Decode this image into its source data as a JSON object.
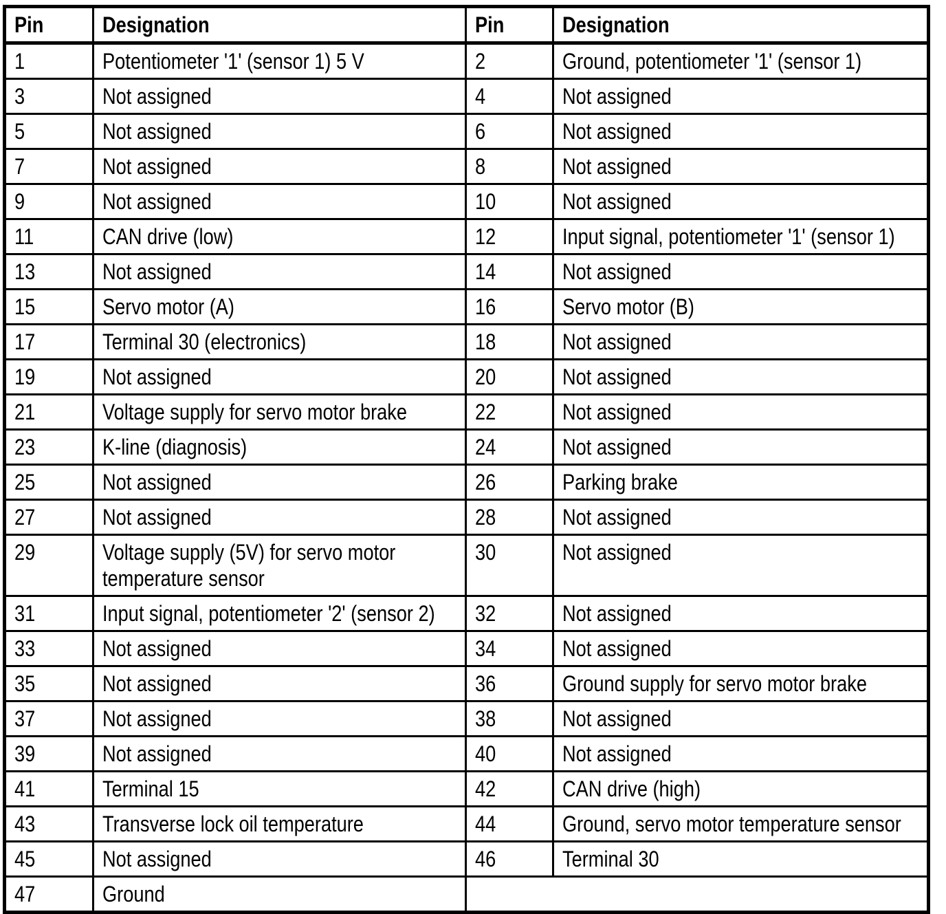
{
  "table": {
    "columns": [
      "Pin",
      "Designation",
      "Pin",
      "Designation"
    ],
    "colors": {
      "border": "#000000",
      "background": "#ffffff",
      "text": "#000000"
    },
    "rows": [
      {
        "pin_left": "1",
        "designation_left": "Potentiometer '1' (sensor 1) 5 V",
        "pin_right": "2",
        "designation_right": "Ground, potentiometer '1' (sensor 1)"
      },
      {
        "pin_left": "3",
        "designation_left": "Not assigned",
        "pin_right": "4",
        "designation_right": "Not assigned"
      },
      {
        "pin_left": "5",
        "designation_left": "Not assigned",
        "pin_right": "6",
        "designation_right": "Not assigned"
      },
      {
        "pin_left": "7",
        "designation_left": "Not assigned",
        "pin_right": "8",
        "designation_right": "Not assigned"
      },
      {
        "pin_left": "9",
        "designation_left": "Not assigned",
        "pin_right": "10",
        "designation_right": "Not assigned"
      },
      {
        "pin_left": "11",
        "designation_left": "CAN drive (low)",
        "pin_right": "12",
        "designation_right": "Input signal, potentiometer '1' (sensor 1)"
      },
      {
        "pin_left": "13",
        "designation_left": "Not assigned",
        "pin_right": "14",
        "designation_right": "Not assigned"
      },
      {
        "pin_left": "15",
        "designation_left": "Servo motor (A)",
        "pin_right": "16",
        "designation_right": "Servo motor (B)"
      },
      {
        "pin_left": "17",
        "designation_left": "Terminal 30 (electronics)",
        "pin_right": "18",
        "designation_right": "Not assigned"
      },
      {
        "pin_left": "19",
        "designation_left": "Not assigned",
        "pin_right": "20",
        "designation_right": "Not assigned"
      },
      {
        "pin_left": "21",
        "designation_left": "Voltage supply for servo motor brake",
        "pin_right": "22",
        "designation_right": "Not assigned"
      },
      {
        "pin_left": "23",
        "designation_left": "K-line (diagnosis)",
        "pin_right": "24",
        "designation_right": "Not assigned"
      },
      {
        "pin_left": "25",
        "designation_left": "Not assigned",
        "pin_right": "26",
        "designation_right": "Parking brake"
      },
      {
        "pin_left": "27",
        "designation_left": "Not assigned",
        "pin_right": "28",
        "designation_right": "Not assigned"
      },
      {
        "pin_left": "29",
        "designation_left": "Voltage supply (5V) for servo motor temperature sensor",
        "pin_right": "30",
        "designation_right": "Not assigned"
      },
      {
        "pin_left": "31",
        "designation_left": "Input signal, potentiometer '2' (sensor 2)",
        "pin_right": "32",
        "designation_right": "Not assigned"
      },
      {
        "pin_left": "33",
        "designation_left": "Not assigned",
        "pin_right": "34",
        "designation_right": "Not assigned"
      },
      {
        "pin_left": "35",
        "designation_left": "Not assigned",
        "pin_right": "36",
        "designation_right": "Ground supply for servo motor brake"
      },
      {
        "pin_left": "37",
        "designation_left": "Not assigned",
        "pin_right": "38",
        "designation_right": "Not assigned"
      },
      {
        "pin_left": "39",
        "designation_left": "Not assigned",
        "pin_right": "40",
        "designation_right": "Not assigned"
      },
      {
        "pin_left": "41",
        "designation_left": "Terminal 15",
        "pin_right": "42",
        "designation_right": "CAN drive (high)"
      },
      {
        "pin_left": "43",
        "designation_left": "Transverse lock oil temperature",
        "pin_right": "44",
        "designation_right": "Ground, servo motor temperature sensor"
      },
      {
        "pin_left": "45",
        "designation_left": "Not assigned",
        "pin_right": "46",
        "designation_right": "Terminal 30"
      },
      {
        "pin_left": "47",
        "designation_left": "Ground",
        "pin_right": "",
        "designation_right": ""
      }
    ]
  }
}
